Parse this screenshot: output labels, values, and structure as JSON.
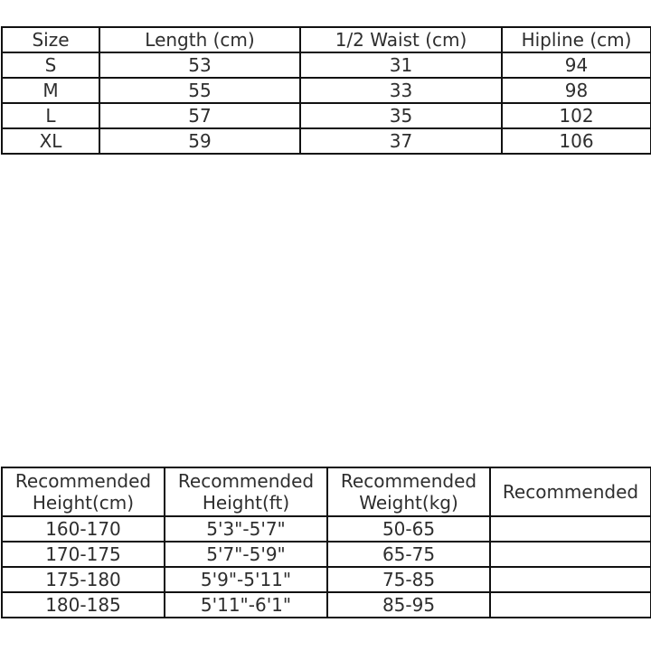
{
  "size_table": {
    "headers": [
      "Size",
      "Length (cm)",
      "1/2 Waist (cm)",
      "Hipline (cm)"
    ],
    "rows": [
      [
        "S",
        "53",
        "31",
        "94"
      ],
      [
        "M",
        "55",
        "33",
        "98"
      ],
      [
        "L",
        "57",
        "35",
        "102"
      ],
      [
        "XL",
        "59",
        "37",
        "106"
      ]
    ]
  },
  "recommend_table": {
    "headers": [
      "Recommended Height(cm)",
      "Recommended Height(ft)",
      "Recommended Weight(kg)",
      "Recommended"
    ],
    "rows": [
      [
        "160-170",
        "5'3\"-5'7\"",
        "50-65",
        ""
      ],
      [
        "170-175",
        "5'7\"-5'9\"",
        "65-75",
        ""
      ],
      [
        "175-180",
        "5'9\"-5'11\"",
        "75-85",
        ""
      ],
      [
        "180-185",
        "5'11\"-6'1\"",
        "85-95",
        ""
      ]
    ]
  }
}
